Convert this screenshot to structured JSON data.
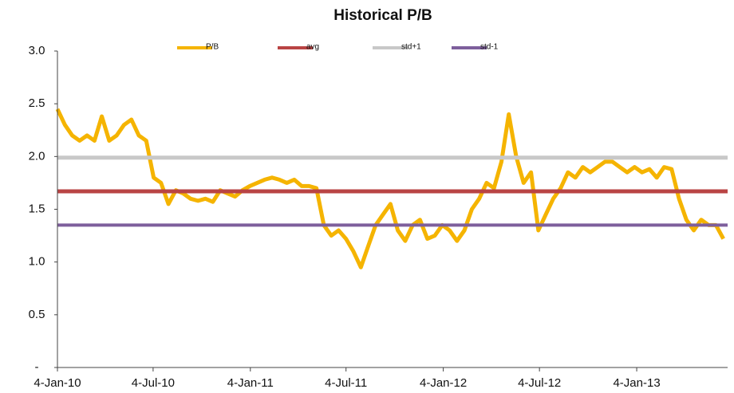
{
  "chart_data": {
    "type": "line",
    "title": "Historical P/B",
    "x": [
      "2010-01-04",
      "2010-01-18",
      "2010-02-01",
      "2010-02-15",
      "2010-03-01",
      "2010-03-15",
      "2010-03-29",
      "2010-04-12",
      "2010-04-26",
      "2010-05-10",
      "2010-05-24",
      "2010-06-07",
      "2010-06-21",
      "2010-07-05",
      "2010-07-19",
      "2010-08-02",
      "2010-08-16",
      "2010-08-30",
      "2010-09-13",
      "2010-09-27",
      "2010-10-11",
      "2010-10-25",
      "2010-11-08",
      "2010-11-22",
      "2010-12-06",
      "2010-12-20",
      "2011-01-03",
      "2011-01-17",
      "2011-01-31",
      "2011-02-14",
      "2011-02-28",
      "2011-03-14",
      "2011-03-28",
      "2011-04-11",
      "2011-04-25",
      "2011-05-09",
      "2011-05-23",
      "2011-06-06",
      "2011-06-20",
      "2011-07-04",
      "2011-07-18",
      "2011-08-01",
      "2011-08-15",
      "2011-08-29",
      "2011-09-12",
      "2011-09-26",
      "2011-10-10",
      "2011-10-24",
      "2011-11-07",
      "2011-11-21",
      "2011-12-05",
      "2011-12-19",
      "2012-01-02",
      "2012-01-16",
      "2012-01-30",
      "2012-02-13",
      "2012-02-27",
      "2012-03-12",
      "2012-03-26",
      "2012-04-09",
      "2012-04-23",
      "2012-05-07",
      "2012-05-21",
      "2012-06-04",
      "2012-06-18",
      "2012-07-02",
      "2012-07-16",
      "2012-07-30",
      "2012-08-13",
      "2012-08-27",
      "2012-09-10",
      "2012-09-24",
      "2012-10-08",
      "2012-10-22",
      "2012-11-05",
      "2012-11-19",
      "2012-12-03",
      "2012-12-17",
      "2012-12-31",
      "2013-01-14",
      "2013-01-28",
      "2013-02-11",
      "2013-02-25",
      "2013-03-11",
      "2013-03-25",
      "2013-04-08",
      "2013-04-22",
      "2013-05-06",
      "2013-05-20",
      "2013-06-03",
      "2013-06-17"
    ],
    "series": [
      {
        "name": "P/B",
        "color": "#f5b400",
        "width": 5,
        "values": [
          2.45,
          2.3,
          2.2,
          2.15,
          2.2,
          2.15,
          2.38,
          2.15,
          2.2,
          2.3,
          2.35,
          2.2,
          2.15,
          1.8,
          1.75,
          1.55,
          1.68,
          1.65,
          1.6,
          1.58,
          1.6,
          1.57,
          1.68,
          1.65,
          1.62,
          1.68,
          1.72,
          1.75,
          1.78,
          1.8,
          1.78,
          1.75,
          1.78,
          1.72,
          1.72,
          1.7,
          1.35,
          1.25,
          1.3,
          1.22,
          1.1,
          0.95,
          1.15,
          1.35,
          1.45,
          1.55,
          1.3,
          1.2,
          1.35,
          1.4,
          1.22,
          1.25,
          1.35,
          1.3,
          1.2,
          1.3,
          1.5,
          1.6,
          1.75,
          1.7,
          1.95,
          2.4,
          2.0,
          1.75,
          1.85,
          1.3,
          1.45,
          1.6,
          1.7,
          1.85,
          1.8,
          1.9,
          1.85,
          1.9,
          1.95,
          1.95,
          1.9,
          1.85,
          1.9,
          1.85,
          1.88,
          1.8,
          1.9,
          1.88,
          1.6,
          1.4,
          1.3,
          1.4,
          1.35,
          1.35,
          1.22
        ]
      },
      {
        "name": "avg",
        "color": "#b94444",
        "width": 5,
        "x": [
          "2010-01-04",
          "2013-06-25"
        ],
        "values": [
          1.67,
          1.67
        ]
      },
      {
        "name": "std+1",
        "color": "#c8c8c8",
        "width": 5,
        "x": [
          "2010-01-04",
          "2013-06-25"
        ],
        "values": [
          1.99,
          1.99
        ]
      },
      {
        "name": "std-1",
        "color": "#7e5f9c",
        "width": 4,
        "x": [
          "2010-01-04",
          "2013-06-25"
        ],
        "values": [
          1.35,
          1.35
        ]
      }
    ],
    "xlim": [
      "2010-01-04",
      "2013-06-25"
    ],
    "xticks": [
      {
        "value": "2010-01-04",
        "label": "4-Jan-10"
      },
      {
        "value": "2010-07-04",
        "label": "4-Jul-10"
      },
      {
        "value": "2011-01-04",
        "label": "4-Jan-11"
      },
      {
        "value": "2011-07-04",
        "label": "4-Jul-11"
      },
      {
        "value": "2012-01-04",
        "label": "4-Jan-12"
      },
      {
        "value": "2012-07-04",
        "label": "4-Jul-12"
      },
      {
        "value": "2013-01-04",
        "label": "4-Jan-13"
      }
    ],
    "ylim": [
      0,
      3
    ],
    "yticks": [
      {
        "value": 0,
        "label": "-"
      },
      {
        "value": 0.5,
        "label": "0.5"
      },
      {
        "value": 1,
        "label": "1.0"
      },
      {
        "value": 1.5,
        "label": "1.5"
      },
      {
        "value": 2,
        "label": "2.0"
      },
      {
        "value": 2.5,
        "label": "2.5"
      },
      {
        "value": 3,
        "label": "3.0"
      }
    ],
    "grid": false,
    "legend": "top"
  }
}
